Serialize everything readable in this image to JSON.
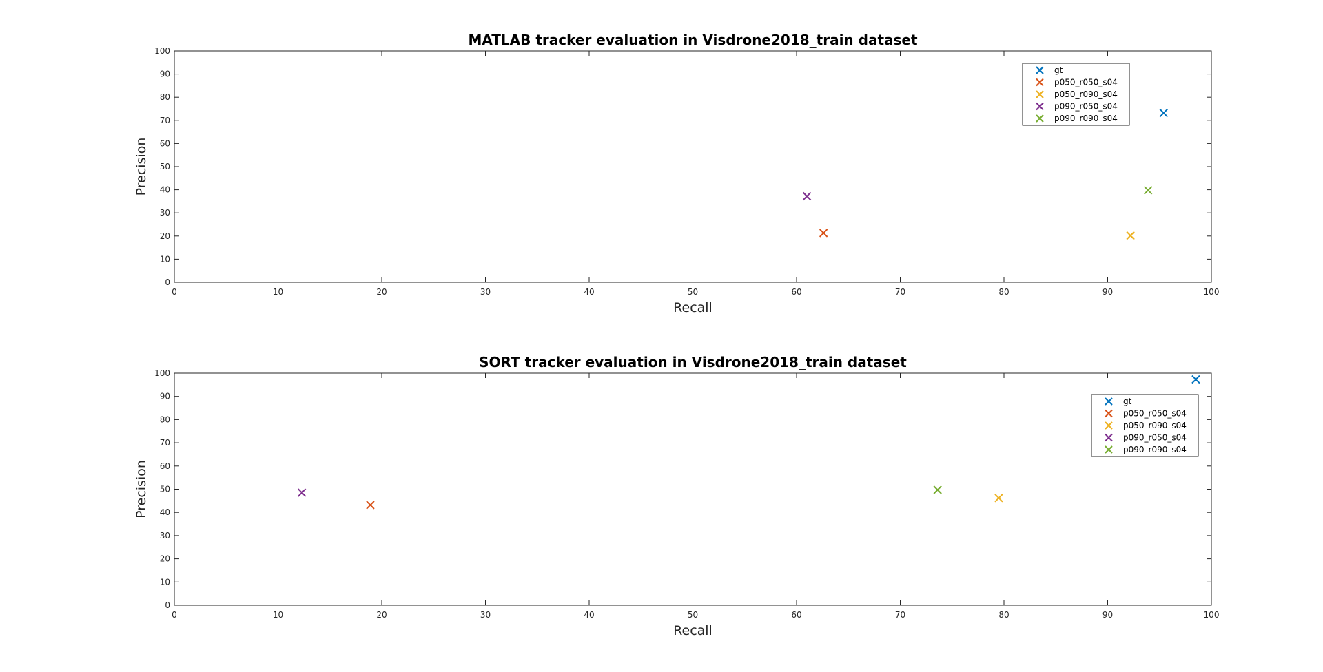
{
  "chart_data": [
    {
      "type": "scatter",
      "title": "MATLAB tracker evaluation in Visdrone2018_train dataset",
      "xlabel": "Recall",
      "ylabel": "Precision",
      "xlim": [
        0,
        100
      ],
      "ylim": [
        0,
        100
      ],
      "xticks": [
        0,
        10,
        20,
        30,
        40,
        50,
        60,
        70,
        80,
        90,
        100
      ],
      "yticks": [
        0,
        10,
        20,
        30,
        40,
        50,
        60,
        70,
        80,
        90,
        100
      ],
      "grid": false,
      "legend_position": "top-right",
      "marker": "x",
      "series": [
        {
          "name": "gt",
          "color": "#0072BD",
          "x": [
            95.4
          ],
          "y": [
            73.2
          ]
        },
        {
          "name": "p050_r050_s04",
          "color": "#D95319",
          "x": [
            62.6
          ],
          "y": [
            21.3
          ]
        },
        {
          "name": "p050_r090_s04",
          "color": "#EDB120",
          "x": [
            92.2
          ],
          "y": [
            20.2
          ]
        },
        {
          "name": "p090_r050_s04",
          "color": "#7E2F8E",
          "x": [
            61.0
          ],
          "y": [
            37.2
          ]
        },
        {
          "name": "p090_r090_s04",
          "color": "#77AC30",
          "x": [
            93.9
          ],
          "y": [
            39.8
          ]
        }
      ]
    },
    {
      "type": "scatter",
      "title": "SORT tracker evaluation in Visdrone2018_train dataset",
      "xlabel": "Recall",
      "ylabel": "Precision",
      "xlim": [
        0,
        100
      ],
      "ylim": [
        0,
        100
      ],
      "xticks": [
        0,
        10,
        20,
        30,
        40,
        50,
        60,
        70,
        80,
        90,
        100
      ],
      "yticks": [
        0,
        10,
        20,
        30,
        40,
        50,
        60,
        70,
        80,
        90,
        100
      ],
      "grid": false,
      "legend_position": "top-right",
      "marker": "x",
      "series": [
        {
          "name": "gt",
          "color": "#0072BD",
          "x": [
            98.5
          ],
          "y": [
            97.3
          ]
        },
        {
          "name": "p050_r050_s04",
          "color": "#D95319",
          "x": [
            18.9
          ],
          "y": [
            43.2
          ]
        },
        {
          "name": "p050_r090_s04",
          "color": "#EDB120",
          "x": [
            79.5
          ],
          "y": [
            46.2
          ]
        },
        {
          "name": "p090_r050_s04",
          "color": "#7E2F8E",
          "x": [
            12.3
          ],
          "y": [
            48.5
          ]
        },
        {
          "name": "p090_r090_s04",
          "color": "#77AC30",
          "x": [
            73.6
          ],
          "y": [
            49.7
          ]
        }
      ]
    }
  ]
}
